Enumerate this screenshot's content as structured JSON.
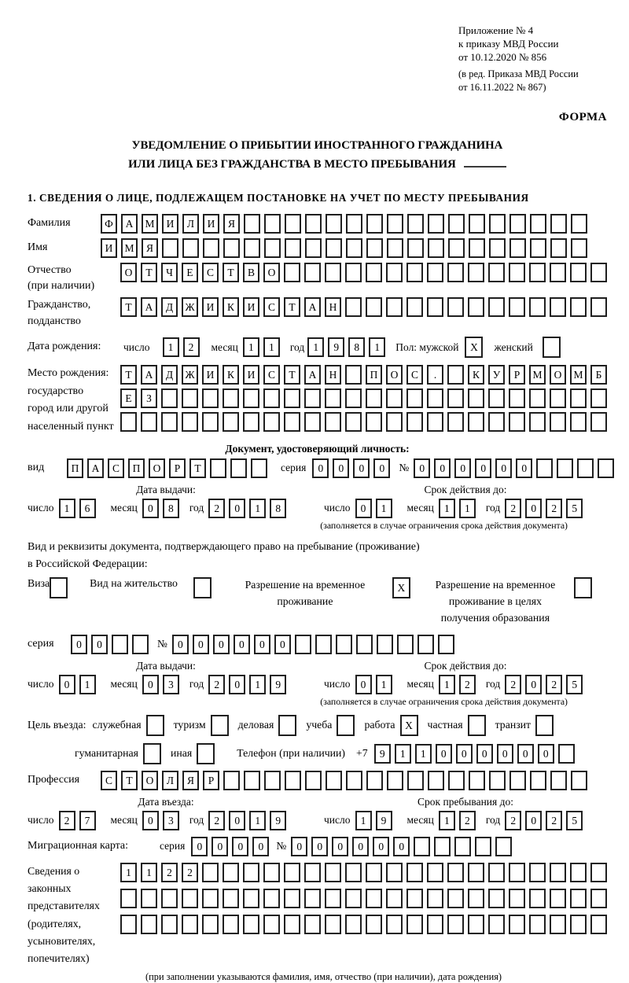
{
  "header": {
    "appendix_lines": [
      "Приложение № 4",
      "к приказу МВД России",
      "от 10.12.2020 № 856"
    ],
    "revision_lines": [
      "(в ред. Приказа МВД России",
      "от 16.11.2022 № 867)"
    ],
    "forma_label": "ФОРМА"
  },
  "title": {
    "line1": "УВЕДОМЛЕНИЕ О ПРИБЫТИИ ИНОСТРАННОГО ГРАЖДАНИНА",
    "line2": "ИЛИ ЛИЦА БЕЗ ГРАЖДАНСТВА В МЕСТО ПРЕБЫВАНИЯ"
  },
  "section1_heading": "1. СВЕДЕНИЯ О ЛИЦЕ, ПОДЛЕЖАЩЕМ ПОСТАНОВКЕ НА УЧЕТ ПО МЕСТУ ПРЕБЫВАНИЯ",
  "surname": {
    "label": "Фамилия",
    "cells": {
      "text": "ФАМИЛИЯ",
      "len": 24
    }
  },
  "firstname": {
    "label": "Имя",
    "cells": {
      "text": "ИМЯ",
      "len": 24
    }
  },
  "patronymic": {
    "label_line1": "Отчество",
    "label_line2": "(при наличии)",
    "cells": {
      "text": "ОТЧЕСТВО",
      "len": 24
    }
  },
  "citizenship": {
    "label_line1": "Гражданство,",
    "label_line2": "подданство",
    "cells": {
      "text": "ТАДЖИКИСТАН",
      "len": 24
    }
  },
  "birth": {
    "label": "Дата рождения:",
    "day_label": "число",
    "day": {
      "text": "12",
      "len": 2
    },
    "month_label": "месяц",
    "month": {
      "text": "11",
      "len": 2
    },
    "year_label": "год",
    "year": {
      "text": "1981",
      "len": 4
    },
    "sex_label": "Пол: мужской",
    "male_box": {
      "text": "X",
      "len": 1
    },
    "female_label": "женский",
    "female_box": {
      "text": "",
      "len": 1
    }
  },
  "birthplace": {
    "label_lines": [
      "Место рождения:",
      "государство",
      "город или другой",
      "населенный пункт"
    ],
    "row1": {
      "text": "ТАДЖИКИСТАН ПОС. КУРМОМБ",
      "len": 24
    },
    "row2": {
      "text": "ЕЗ",
      "len": 24
    },
    "row3": {
      "text": "",
      "len": 24
    }
  },
  "identity_doc": {
    "heading": "Документ, удостоверяющий личность:",
    "kind_label": "вид",
    "kind": {
      "text": "ПАСПОРТ",
      "len": 10
    },
    "series_label": "серия",
    "series": {
      "text": "0000",
      "len": 4
    },
    "number_label": "№",
    "number": {
      "text": "000000",
      "len": 10
    }
  },
  "doc_dates": {
    "issue_title": "Дата выдачи:",
    "expiry_title": "Срок действия до:",
    "day_label": "число",
    "month_label": "месяц",
    "year_label": "год",
    "issue_day": {
      "text": "16",
      "len": 2
    },
    "issue_month": {
      "text": "08",
      "len": 2
    },
    "issue_year": {
      "text": "2018",
      "len": 4
    },
    "expiry_day": {
      "text": "01",
      "len": 2
    },
    "expiry_month": {
      "text": "11",
      "len": 2
    },
    "expiry_year": {
      "text": "2025",
      "len": 4
    },
    "note": "(заполняется в случае ограничения срока действия документа)"
  },
  "residence_doc": {
    "line1": "Вид и реквизиты документа, подтверждающего право на пребывание (проживание)",
    "line2": "в Российской Федерации:",
    "visa_label": "Виза",
    "visa_box": {
      "text": "",
      "len": 1
    },
    "permit_label": "Вид на жительство",
    "permit_box": {
      "text": "",
      "len": 1
    },
    "rvp_lines": [
      "Разрешение на временное",
      "проживание"
    ],
    "rvp_box": {
      "text": "X",
      "len": 1
    },
    "rvp_edu_lines": [
      "Разрешение на временное",
      "проживание в целях",
      "получения образования"
    ],
    "rvp_edu_box": {
      "text": "",
      "len": 1
    }
  },
  "rvp_series": {
    "series_label": "серия",
    "series": {
      "text": "00",
      "len": 4
    },
    "number_label": "№",
    "number": {
      "text": "000000",
      "len": 14
    }
  },
  "rvp_dates": {
    "issue_title": "Дата выдачи:",
    "expiry_title": "Срок действия до:",
    "day_label": "число",
    "month_label": "месяц",
    "year_label": "год",
    "issue_day": {
      "text": "01",
      "len": 2
    },
    "issue_month": {
      "text": "03",
      "len": 2
    },
    "issue_year": {
      "text": "2019",
      "len": 4
    },
    "expiry_day": {
      "text": "01",
      "len": 2
    },
    "expiry_month": {
      "text": "12",
      "len": 2
    },
    "expiry_year": {
      "text": "2025",
      "len": 4
    },
    "note": "(заполняется в случае ограничения срока действия документа)"
  },
  "purpose": {
    "label": "Цель въезда:",
    "options": [
      {
        "label": "служебная",
        "box": {
          "text": "",
          "len": 1
        }
      },
      {
        "label": "туризм",
        "box": {
          "text": "",
          "len": 1
        }
      },
      {
        "label": "деловая",
        "box": {
          "text": "",
          "len": 1
        }
      },
      {
        "label": "учеба",
        "box": {
          "text": "",
          "len": 1
        }
      },
      {
        "label": "работа",
        "box": {
          "text": "X",
          "len": 1
        }
      },
      {
        "label": "частная",
        "box": {
          "text": "",
          "len": 1
        }
      },
      {
        "label": "транзит",
        "box": {
          "text": "",
          "len": 1
        }
      }
    ]
  },
  "purpose2": {
    "options": [
      {
        "label": "гуманитарная",
        "box": {
          "text": "",
          "len": 1
        }
      },
      {
        "label": "иная",
        "box": {
          "text": "",
          "len": 1
        }
      }
    ],
    "phone_label": "Телефон (при наличии)",
    "phone_prefix": "+7",
    "phone": {
      "text": "911000000",
      "len": 10
    }
  },
  "profession": {
    "label": "Профессия",
    "cells": {
      "text": "СТОЛЯР",
      "len": 24
    }
  },
  "entry_dates": {
    "entry_title": "Дата въезда:",
    "stay_title": "Срок пребывания до:",
    "day_label": "число",
    "month_label": "месяц",
    "year_label": "год",
    "entry_day": {
      "text": "27",
      "len": 2
    },
    "entry_month": {
      "text": "03",
      "len": 2
    },
    "entry_year": {
      "text": "2019",
      "len": 4
    },
    "stay_day": {
      "text": "19",
      "len": 2
    },
    "stay_month": {
      "text": "12",
      "len": 2
    },
    "stay_year": {
      "text": "2025",
      "len": 4
    }
  },
  "migration_card": {
    "label": "Миграционная карта:",
    "series_label": "серия",
    "series": {
      "text": "0000",
      "len": 4
    },
    "number_label": "№",
    "number": {
      "text": "000000",
      "len": 11
    }
  },
  "representatives": {
    "label_lines": [
      "Сведения о",
      "законных",
      "представителях",
      "(родителях,",
      "усыновителях,",
      "попечителях)"
    ],
    "row1": {
      "text": "1122",
      "len": 24
    },
    "row2": {
      "text": "",
      "len": 24
    },
    "row3": {
      "text": "",
      "len": 24
    },
    "note": "(при заполнении указываются фамилия, имя, отчество (при наличии), дата рождения)"
  }
}
